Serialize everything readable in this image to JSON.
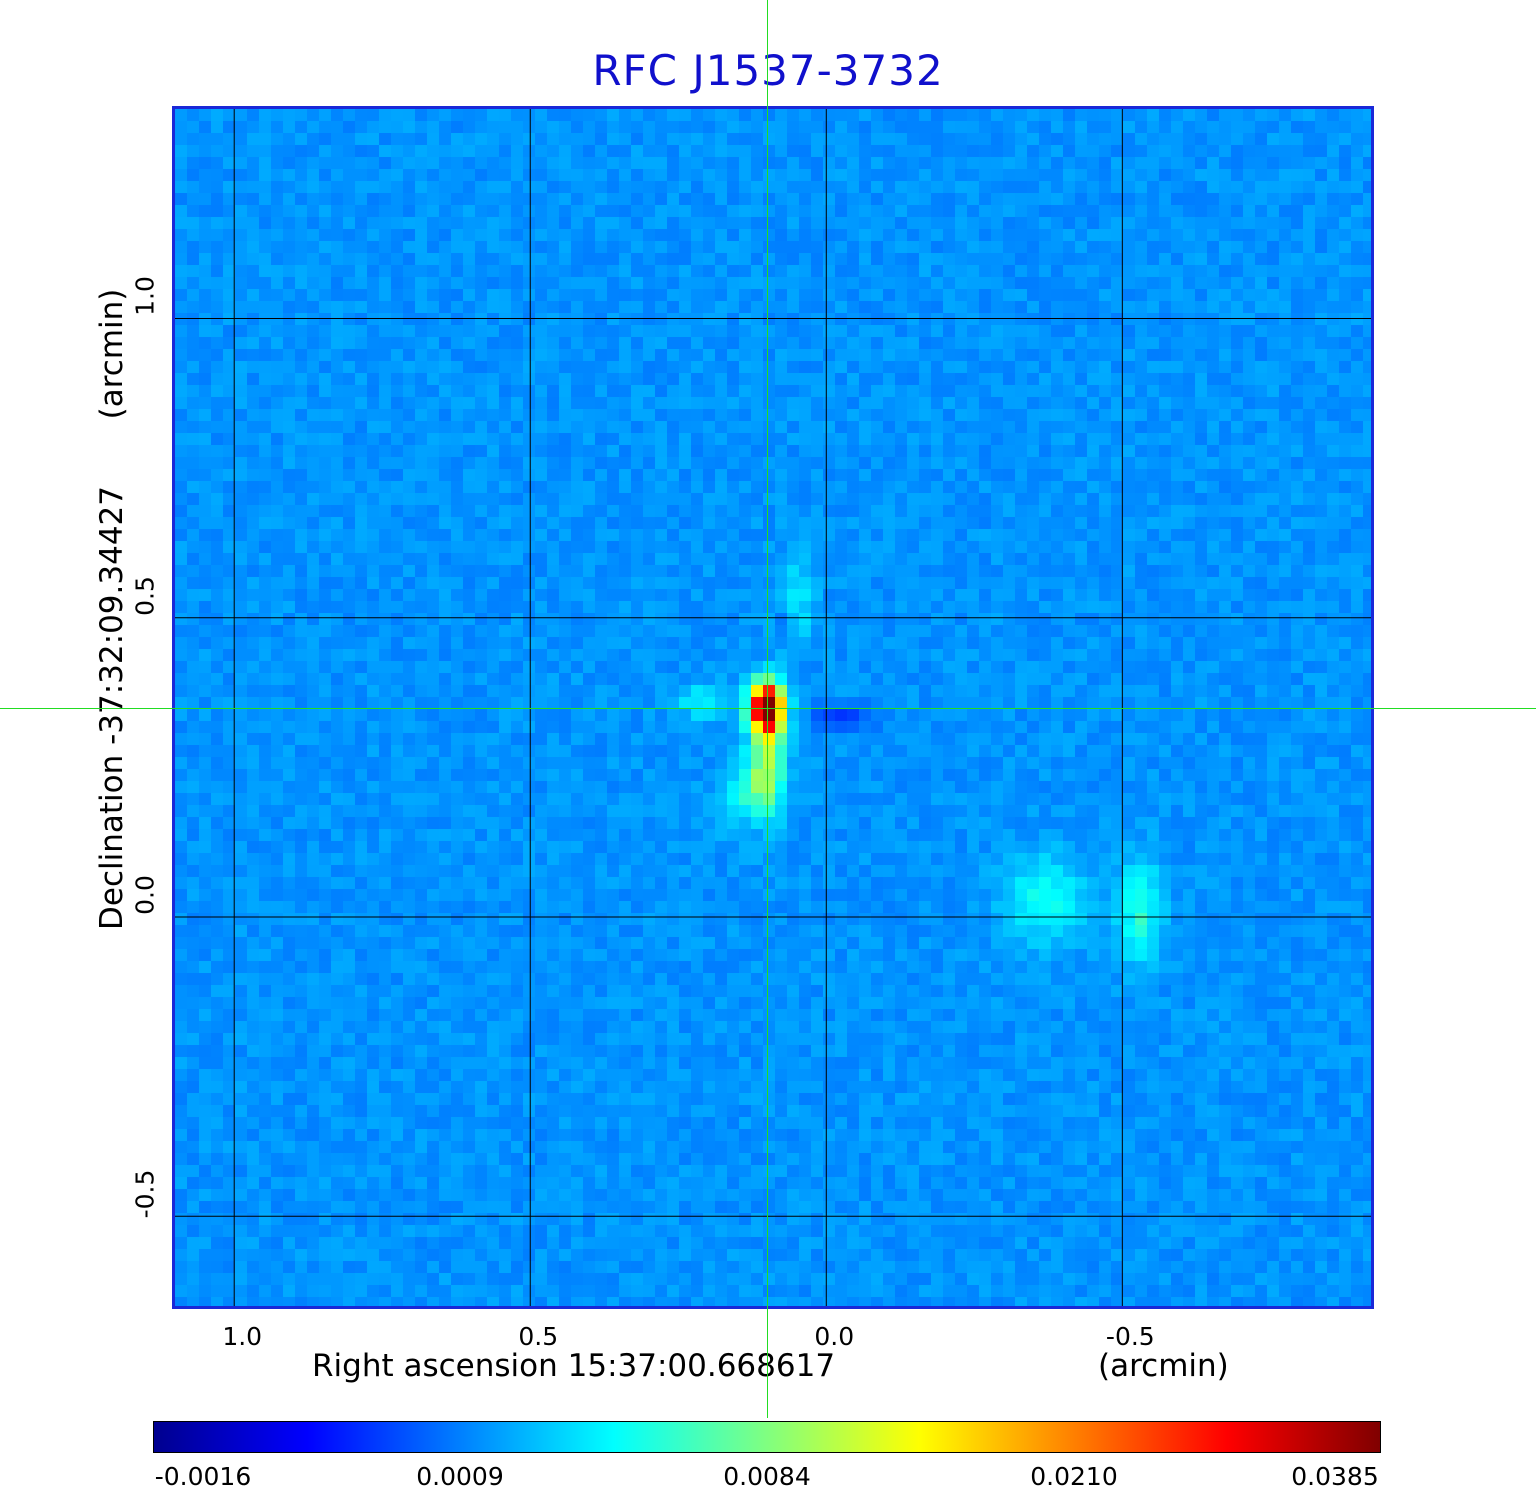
{
  "chart_data": {
    "type": "heatmap",
    "title": "RFC J1537-3732",
    "xlabel": "Right ascension  15:37:00.668617",
    "xunit": "(arcmin)",
    "ylabel": "Declination  -37:32:09.34427",
    "yunit": "(arcmin)",
    "x_ticks": [
      "1.0",
      "0.5",
      "0.0",
      "-0.5"
    ],
    "x_tick_values": [
      1.0,
      0.5,
      0.0,
      -0.5
    ],
    "y_ticks": [
      "1.0",
      "0.5",
      "0.0",
      "-0.5"
    ],
    "y_tick_values": [
      1.0,
      0.5,
      0.0,
      -0.5
    ],
    "xlim": [
      1.1,
      -0.92
    ],
    "ylim": [
      -0.65,
      1.35
    ],
    "grid": true,
    "colormap": "jet",
    "colorbar_ticks": [
      "-0.0016",
      "0.0009",
      "0.0084",
      "0.0210",
      "0.0385"
    ],
    "colorbar_values": [
      -0.0016,
      0.0009,
      0.0084,
      0.021,
      0.0385
    ],
    "crosshair": {
      "x": 0.1,
      "y": 0.345
    },
    "features": [
      {
        "x": 0.1,
        "y": 0.35,
        "level": 1.0,
        "sx": 0.02,
        "sy": 0.03
      },
      {
        "x": 0.1,
        "y": 0.26,
        "level": 0.32,
        "sx": 0.02,
        "sy": 0.06
      },
      {
        "x": 0.13,
        "y": 0.2,
        "level": 0.22,
        "sx": 0.03,
        "sy": 0.04
      },
      {
        "x": -0.37,
        "y": 0.03,
        "level": 0.16,
        "sx": 0.05,
        "sy": 0.05
      },
      {
        "x": -0.53,
        "y": 0.01,
        "level": 0.2,
        "sx": 0.025,
        "sy": 0.06
      },
      {
        "x": 0.21,
        "y": 0.36,
        "level": 0.14,
        "sx": 0.03,
        "sy": 0.02
      },
      {
        "x": 0.05,
        "y": 0.53,
        "level": 0.12,
        "sx": 0.02,
        "sy": 0.05
      },
      {
        "x": -0.03,
        "y": 0.33,
        "level": -0.12,
        "sx": 0.04,
        "sy": 0.015
      },
      {
        "x": 0.12,
        "y": 0.17,
        "level": -0.1,
        "sx": 0.02,
        "sy": 0.03
      },
      {
        "x": 0.07,
        "y": 0.5,
        "level": -0.08,
        "sx": 0.01,
        "sy": 0.02
      }
    ]
  }
}
